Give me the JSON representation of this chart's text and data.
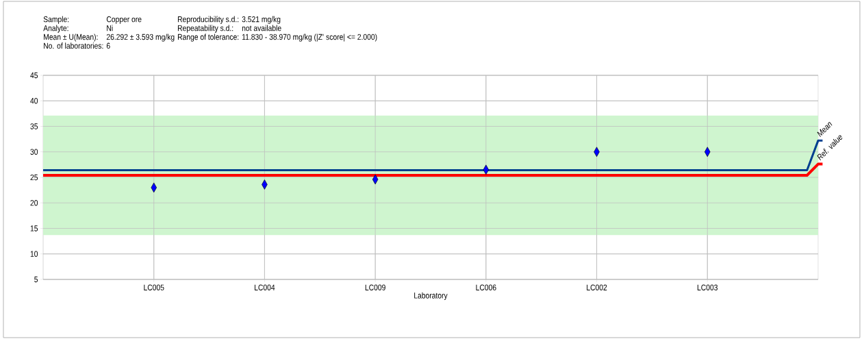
{
  "chart_data": {
    "type": "scatter",
    "xlabel": "Laboratory",
    "categories": [
      "LC005",
      "LC004",
      "LC009",
      "LC006",
      "LC002",
      "LC003"
    ],
    "series": [
      {
        "color": "#0000ff",
        "values": [
          23.0,
          23.6,
          24.6,
          26.5,
          30.0,
          30.0
        ]
      }
    ],
    "ylim": [
      5,
      45
    ],
    "yticks": [
      5,
      10,
      15,
      20,
      25,
      30,
      35,
      40,
      45
    ],
    "grid": true,
    "marker": "diamond",
    "ref_lines": [
      {
        "axis": "y",
        "value": 26.4,
        "label": "Mean",
        "color": "#003f8f"
      },
      {
        "axis": "y",
        "value": 25.4,
        "label": "Ref. value",
        "color": "#ff0000"
      }
    ],
    "bands": [
      {
        "axis": "y",
        "from": 13.7,
        "to": 37.1,
        "color": "#cff5cf"
      }
    ],
    "annotations": [
      "Sample:",
      "Copper ore",
      "Reproducibility s.d.:",
      "3.521 mg/kg",
      "Analyte:",
      "Ni",
      "Repeatability s.d.:",
      "not available",
      "Mean ± U(Mean):",
      "26.292 ± 3.593 mg/kg",
      "Range of tolerance:",
      "11.830 - 38.970 mg/kg (|Z' score| <= 2.000)",
      "No. of laboratories:",
      "6"
    ]
  }
}
